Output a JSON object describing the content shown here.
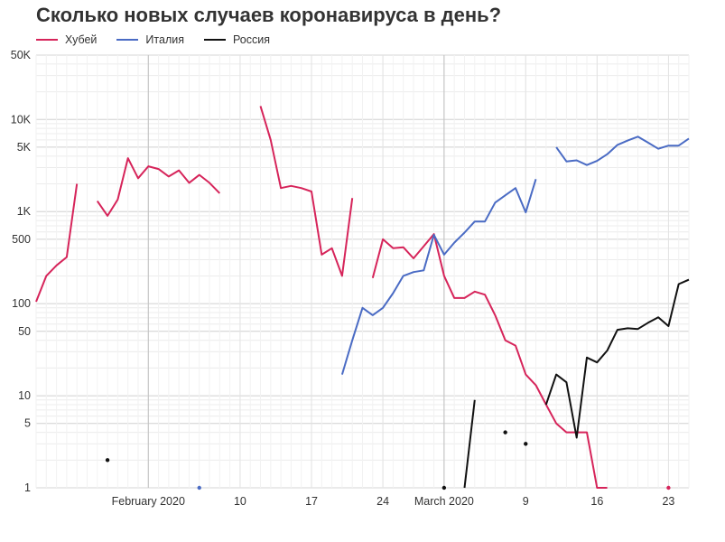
{
  "chart_data": {
    "type": "line",
    "title": "Сколько новых случаев коронавируса в день?",
    "y_scale": "log",
    "ylim": [
      1,
      50000
    ],
    "y_ticks": [
      1,
      5,
      10,
      50,
      100,
      500,
      1000,
      5000,
      10000,
      50000
    ],
    "y_tick_labels": [
      "1",
      "5",
      "10",
      "50",
      "100",
      "500",
      "1K",
      "5K",
      "10K",
      "50K"
    ],
    "x_range": [
      "2020-01-21",
      "2020-03-25"
    ],
    "x_ticks": [
      {
        "date": "2020-02-01",
        "label": "February 2020"
      },
      {
        "date": "2020-02-10",
        "label": "10"
      },
      {
        "date": "2020-02-17",
        "label": "17"
      },
      {
        "date": "2020-02-24",
        "label": "24"
      },
      {
        "date": "2020-03-01",
        "label": "March 2020"
      },
      {
        "date": "2020-03-09",
        "label": "9"
      },
      {
        "date": "2020-03-16",
        "label": "16"
      },
      {
        "date": "2020-03-23",
        "label": "23"
      }
    ],
    "grid": true,
    "legend_position": "top-left",
    "series": [
      {
        "name": "Хубей",
        "color": "#d6245a",
        "points": [
          [
            "2020-01-21",
            105
          ],
          [
            "2020-01-22",
            200
          ],
          [
            "2020-01-23",
            260
          ],
          [
            "2020-01-24",
            320
          ],
          [
            "2020-01-25",
            2000
          ],
          [
            "2020-01-26",
            null
          ],
          [
            "2020-01-27",
            1300
          ],
          [
            "2020-01-28",
            900
          ],
          [
            "2020-01-29",
            1350
          ],
          [
            "2020-01-30",
            3800
          ],
          [
            "2020-01-31",
            2300
          ],
          [
            "2020-02-01",
            3100
          ],
          [
            "2020-02-02",
            2900
          ],
          [
            "2020-02-03",
            2400
          ],
          [
            "2020-02-04",
            2800
          ],
          [
            "2020-02-05",
            2050
          ],
          [
            "2020-02-06",
            2500
          ],
          [
            "2020-02-07",
            2050
          ],
          [
            "2020-02-08",
            1580
          ],
          [
            "2020-02-09",
            null
          ],
          [
            "2020-02-10",
            null
          ],
          [
            "2020-02-11",
            null
          ],
          [
            "2020-02-12",
            14000
          ],
          [
            "2020-02-13",
            6000
          ],
          [
            "2020-02-14",
            1800
          ],
          [
            "2020-02-15",
            1900
          ],
          [
            "2020-02-16",
            1800
          ],
          [
            "2020-02-17",
            1650
          ],
          [
            "2020-02-18",
            340
          ],
          [
            "2020-02-19",
            400
          ],
          [
            "2020-02-20",
            200
          ],
          [
            "2020-02-21",
            1400
          ],
          [
            "2020-02-22",
            null
          ],
          [
            "2020-02-23",
            190
          ],
          [
            "2020-02-24",
            500
          ],
          [
            "2020-02-25",
            400
          ],
          [
            "2020-02-26",
            410
          ],
          [
            "2020-02-27",
            310
          ],
          [
            "2020-02-28",
            420
          ],
          [
            "2020-02-29",
            570
          ],
          [
            "2020-03-01",
            200
          ],
          [
            "2020-03-02",
            115
          ],
          [
            "2020-03-03",
            115
          ],
          [
            "2020-03-04",
            135
          ],
          [
            "2020-03-05",
            125
          ],
          [
            "2020-03-06",
            75
          ],
          [
            "2020-03-07",
            40
          ],
          [
            "2020-03-08",
            35
          ],
          [
            "2020-03-09",
            17
          ],
          [
            "2020-03-10",
            13
          ],
          [
            "2020-03-11",
            8
          ],
          [
            "2020-03-12",
            5
          ],
          [
            "2020-03-13",
            4
          ],
          [
            "2020-03-14",
            4
          ],
          [
            "2020-03-15",
            4
          ],
          [
            "2020-03-16",
            1
          ],
          [
            "2020-03-17",
            1
          ],
          [
            "2020-03-18",
            null
          ],
          [
            "2020-03-19",
            null
          ],
          [
            "2020-03-20",
            null
          ],
          [
            "2020-03-21",
            null
          ],
          [
            "2020-03-22",
            null
          ],
          [
            "2020-03-23",
            1
          ]
        ]
      },
      {
        "name": "Италия",
        "color": "#4a6bc4",
        "points": [
          [
            "2020-02-06",
            1
          ],
          [
            "2020-02-07",
            null
          ],
          [
            "2020-02-20",
            17
          ],
          [
            "2020-02-21",
            40
          ],
          [
            "2020-02-22",
            90
          ],
          [
            "2020-02-23",
            75
          ],
          [
            "2020-02-24",
            90
          ],
          [
            "2020-02-25",
            130
          ],
          [
            "2020-02-26",
            200
          ],
          [
            "2020-02-27",
            220
          ],
          [
            "2020-02-28",
            230
          ],
          [
            "2020-02-29",
            560
          ],
          [
            "2020-03-01",
            340
          ],
          [
            "2020-03-02",
            460
          ],
          [
            "2020-03-03",
            590
          ],
          [
            "2020-03-04",
            780
          ],
          [
            "2020-03-05",
            780
          ],
          [
            "2020-03-06",
            1250
          ],
          [
            "2020-03-07",
            1500
          ],
          [
            "2020-03-08",
            1800
          ],
          [
            "2020-03-09",
            980
          ],
          [
            "2020-03-10",
            2250
          ],
          [
            "2020-03-11",
            null
          ],
          [
            "2020-03-12",
            5000
          ],
          [
            "2020-03-13",
            3500
          ],
          [
            "2020-03-14",
            3600
          ],
          [
            "2020-03-15",
            3200
          ],
          [
            "2020-03-16",
            3550
          ],
          [
            "2020-03-17",
            4200
          ],
          [
            "2020-03-18",
            5300
          ],
          [
            "2020-03-19",
            5900
          ],
          [
            "2020-03-20",
            6500
          ],
          [
            "2020-03-21",
            5600
          ],
          [
            "2020-03-22",
            4800
          ],
          [
            "2020-03-23",
            5200
          ],
          [
            "2020-03-24",
            5200
          ],
          [
            "2020-03-25",
            6200
          ]
        ]
      },
      {
        "name": "Россия",
        "color": "#111111",
        "points": [
          [
            "2020-01-28",
            2
          ],
          [
            "2020-01-29",
            null
          ],
          [
            "2020-03-01",
            1
          ],
          [
            "2020-03-02",
            null
          ],
          [
            "2020-03-03",
            1
          ],
          [
            "2020-03-04",
            9
          ],
          [
            "2020-03-05",
            null
          ],
          [
            "2020-03-07",
            4
          ],
          [
            "2020-03-08",
            null
          ],
          [
            "2020-03-09",
            3
          ],
          [
            "2020-03-10",
            null
          ],
          [
            "2020-03-11",
            8
          ],
          [
            "2020-03-12",
            17
          ],
          [
            "2020-03-13",
            14
          ],
          [
            "2020-03-14",
            3.5
          ],
          [
            "2020-03-15",
            26
          ],
          [
            "2020-03-16",
            23
          ],
          [
            "2020-03-17",
            31
          ],
          [
            "2020-03-18",
            52
          ],
          [
            "2020-03-19",
            54
          ],
          [
            "2020-03-20",
            53
          ],
          [
            "2020-03-21",
            62
          ],
          [
            "2020-03-22",
            71
          ],
          [
            "2020-03-23",
            57
          ],
          [
            "2020-03-24",
            163
          ],
          [
            "2020-03-25",
            182
          ]
        ]
      }
    ]
  }
}
